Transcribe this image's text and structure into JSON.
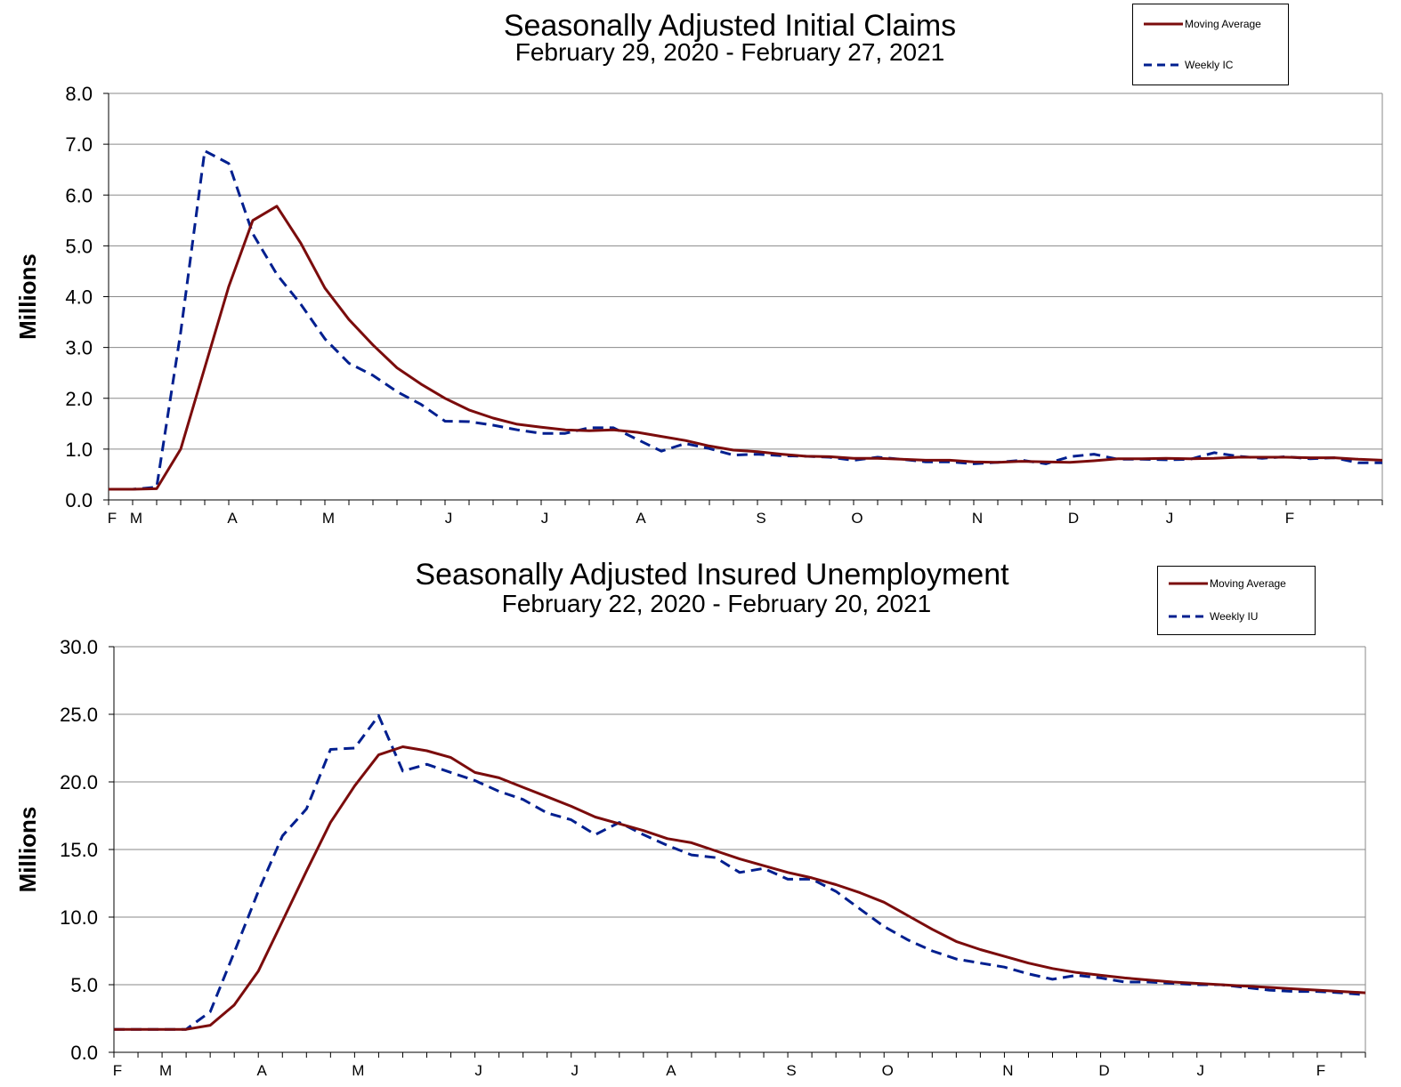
{
  "chart_data": [
    {
      "type": "line",
      "title": "Seasonally Adjusted Initial Claims",
      "subtitle": "February 29, 2020 - February 27, 2021",
      "ylabel": "Millions",
      "xlabel": "",
      "ylim": [
        0,
        8
      ],
      "yticks": [
        "0.0",
        "1.0",
        "2.0",
        "3.0",
        "4.0",
        "5.0",
        "6.0",
        "7.0",
        "8.0"
      ],
      "month_ticks": [
        {
          "label": "F",
          "week": 0
        },
        {
          "label": "M",
          "week": 1
        },
        {
          "label": "A",
          "week": 5
        },
        {
          "label": "M",
          "week": 9
        },
        {
          "label": "J",
          "week": 14
        },
        {
          "label": "J",
          "week": 18
        },
        {
          "label": "A",
          "week": 22
        },
        {
          "label": "S",
          "week": 27
        },
        {
          "label": "O",
          "week": 31
        },
        {
          "label": "N",
          "week": 36
        },
        {
          "label": "D",
          "week": 40
        },
        {
          "label": "J",
          "week": 44
        },
        {
          "label": "F",
          "week": 49
        }
      ],
      "week_count": 53,
      "grid": true,
      "legend_position": "top-right",
      "series": [
        {
          "name": "Moving Average",
          "style": "solid",
          "color": "#7b0c0c",
          "values": [
            0.21,
            0.21,
            0.22,
            1.0,
            2.6,
            4.2,
            5.5,
            5.78,
            5.05,
            4.17,
            3.55,
            3.05,
            2.6,
            2.28,
            2.0,
            1.77,
            1.61,
            1.49,
            1.43,
            1.38,
            1.36,
            1.38,
            1.33,
            1.25,
            1.17,
            1.06,
            0.98,
            0.95,
            0.9,
            0.86,
            0.85,
            0.82,
            0.82,
            0.8,
            0.78,
            0.78,
            0.75,
            0.74,
            0.76,
            0.75,
            0.74,
            0.77,
            0.81,
            0.81,
            0.82,
            0.81,
            0.82,
            0.84,
            0.84,
            0.84,
            0.83,
            0.83,
            0.8,
            0.78
          ]
        },
        {
          "name": "Weekly IC",
          "style": "dashed",
          "color": "#001f8f",
          "values": [
            0.21,
            0.21,
            0.25,
            3.3,
            6.87,
            6.62,
            5.24,
            4.44,
            3.85,
            3.17,
            2.69,
            2.45,
            2.13,
            1.88,
            1.55,
            1.54,
            1.47,
            1.38,
            1.31,
            1.31,
            1.42,
            1.42,
            1.19,
            0.96,
            1.11,
            1.01,
            0.88,
            0.9,
            0.87,
            0.86,
            0.84,
            0.78,
            0.84,
            0.8,
            0.75,
            0.75,
            0.71,
            0.74,
            0.78,
            0.71,
            0.85,
            0.9,
            0.8,
            0.8,
            0.79,
            0.8,
            0.93,
            0.86,
            0.82,
            0.85,
            0.81,
            0.83,
            0.73,
            0.73
          ]
        }
      ]
    },
    {
      "type": "line",
      "title": "Seasonally Adjusted Insured Unemployment",
      "subtitle": "February 22, 2020 - February 20, 2021",
      "ylabel": "Millions",
      "xlabel": "",
      "ylim": [
        0,
        30
      ],
      "yticks": [
        "0.0",
        "5.0",
        "10.0",
        "15.0",
        "20.0",
        "25.0",
        "30.0"
      ],
      "month_ticks": [
        {
          "label": "F",
          "week": 0
        },
        {
          "label": "M",
          "week": 2
        },
        {
          "label": "A",
          "week": 6
        },
        {
          "label": "M",
          "week": 10
        },
        {
          "label": "J",
          "week": 15
        },
        {
          "label": "J",
          "week": 19
        },
        {
          "label": "A",
          "week": 23
        },
        {
          "label": "S",
          "week": 28
        },
        {
          "label": "O",
          "week": 32
        },
        {
          "label": "N",
          "week": 37
        },
        {
          "label": "D",
          "week": 41
        },
        {
          "label": "J",
          "week": 45
        },
        {
          "label": "F",
          "week": 50
        }
      ],
      "week_count": 52,
      "grid": true,
      "legend_position": "top-right",
      "series": [
        {
          "name": "Moving Average",
          "style": "solid",
          "color": "#7b0c0c",
          "values": [
            1.7,
            1.7,
            1.7,
            1.7,
            2.0,
            3.5,
            6.0,
            9.7,
            13.4,
            17.0,
            19.7,
            22.0,
            22.6,
            22.3,
            21.8,
            20.7,
            20.3,
            19.6,
            18.9,
            18.2,
            17.4,
            16.9,
            16.4,
            15.8,
            15.5,
            14.9,
            14.3,
            13.8,
            13.3,
            12.9,
            12.4,
            11.8,
            11.1,
            10.1,
            9.1,
            8.2,
            7.6,
            7.1,
            6.6,
            6.2,
            5.9,
            5.7,
            5.5,
            5.35,
            5.2,
            5.1,
            5.0,
            4.9,
            4.8,
            4.7,
            4.6,
            4.5,
            4.4
          ]
        },
        {
          "name": "Weekly IU",
          "style": "dashed",
          "color": "#001f8f",
          "values": [
            1.7,
            1.7,
            1.7,
            1.7,
            3.0,
            7.4,
            11.9,
            16.0,
            18.0,
            22.4,
            22.5,
            24.9,
            20.8,
            21.3,
            20.7,
            20.1,
            19.3,
            18.7,
            17.7,
            17.2,
            16.1,
            17.0,
            16.1,
            15.3,
            14.6,
            14.4,
            13.3,
            13.6,
            12.8,
            12.8,
            11.9,
            10.6,
            9.3,
            8.3,
            7.5,
            6.9,
            6.6,
            6.3,
            5.8,
            5.4,
            5.7,
            5.5,
            5.2,
            5.2,
            5.1,
            5.0,
            5.0,
            4.8,
            4.6,
            4.5,
            4.5,
            4.4,
            4.25
          ]
        }
      ]
    }
  ]
}
